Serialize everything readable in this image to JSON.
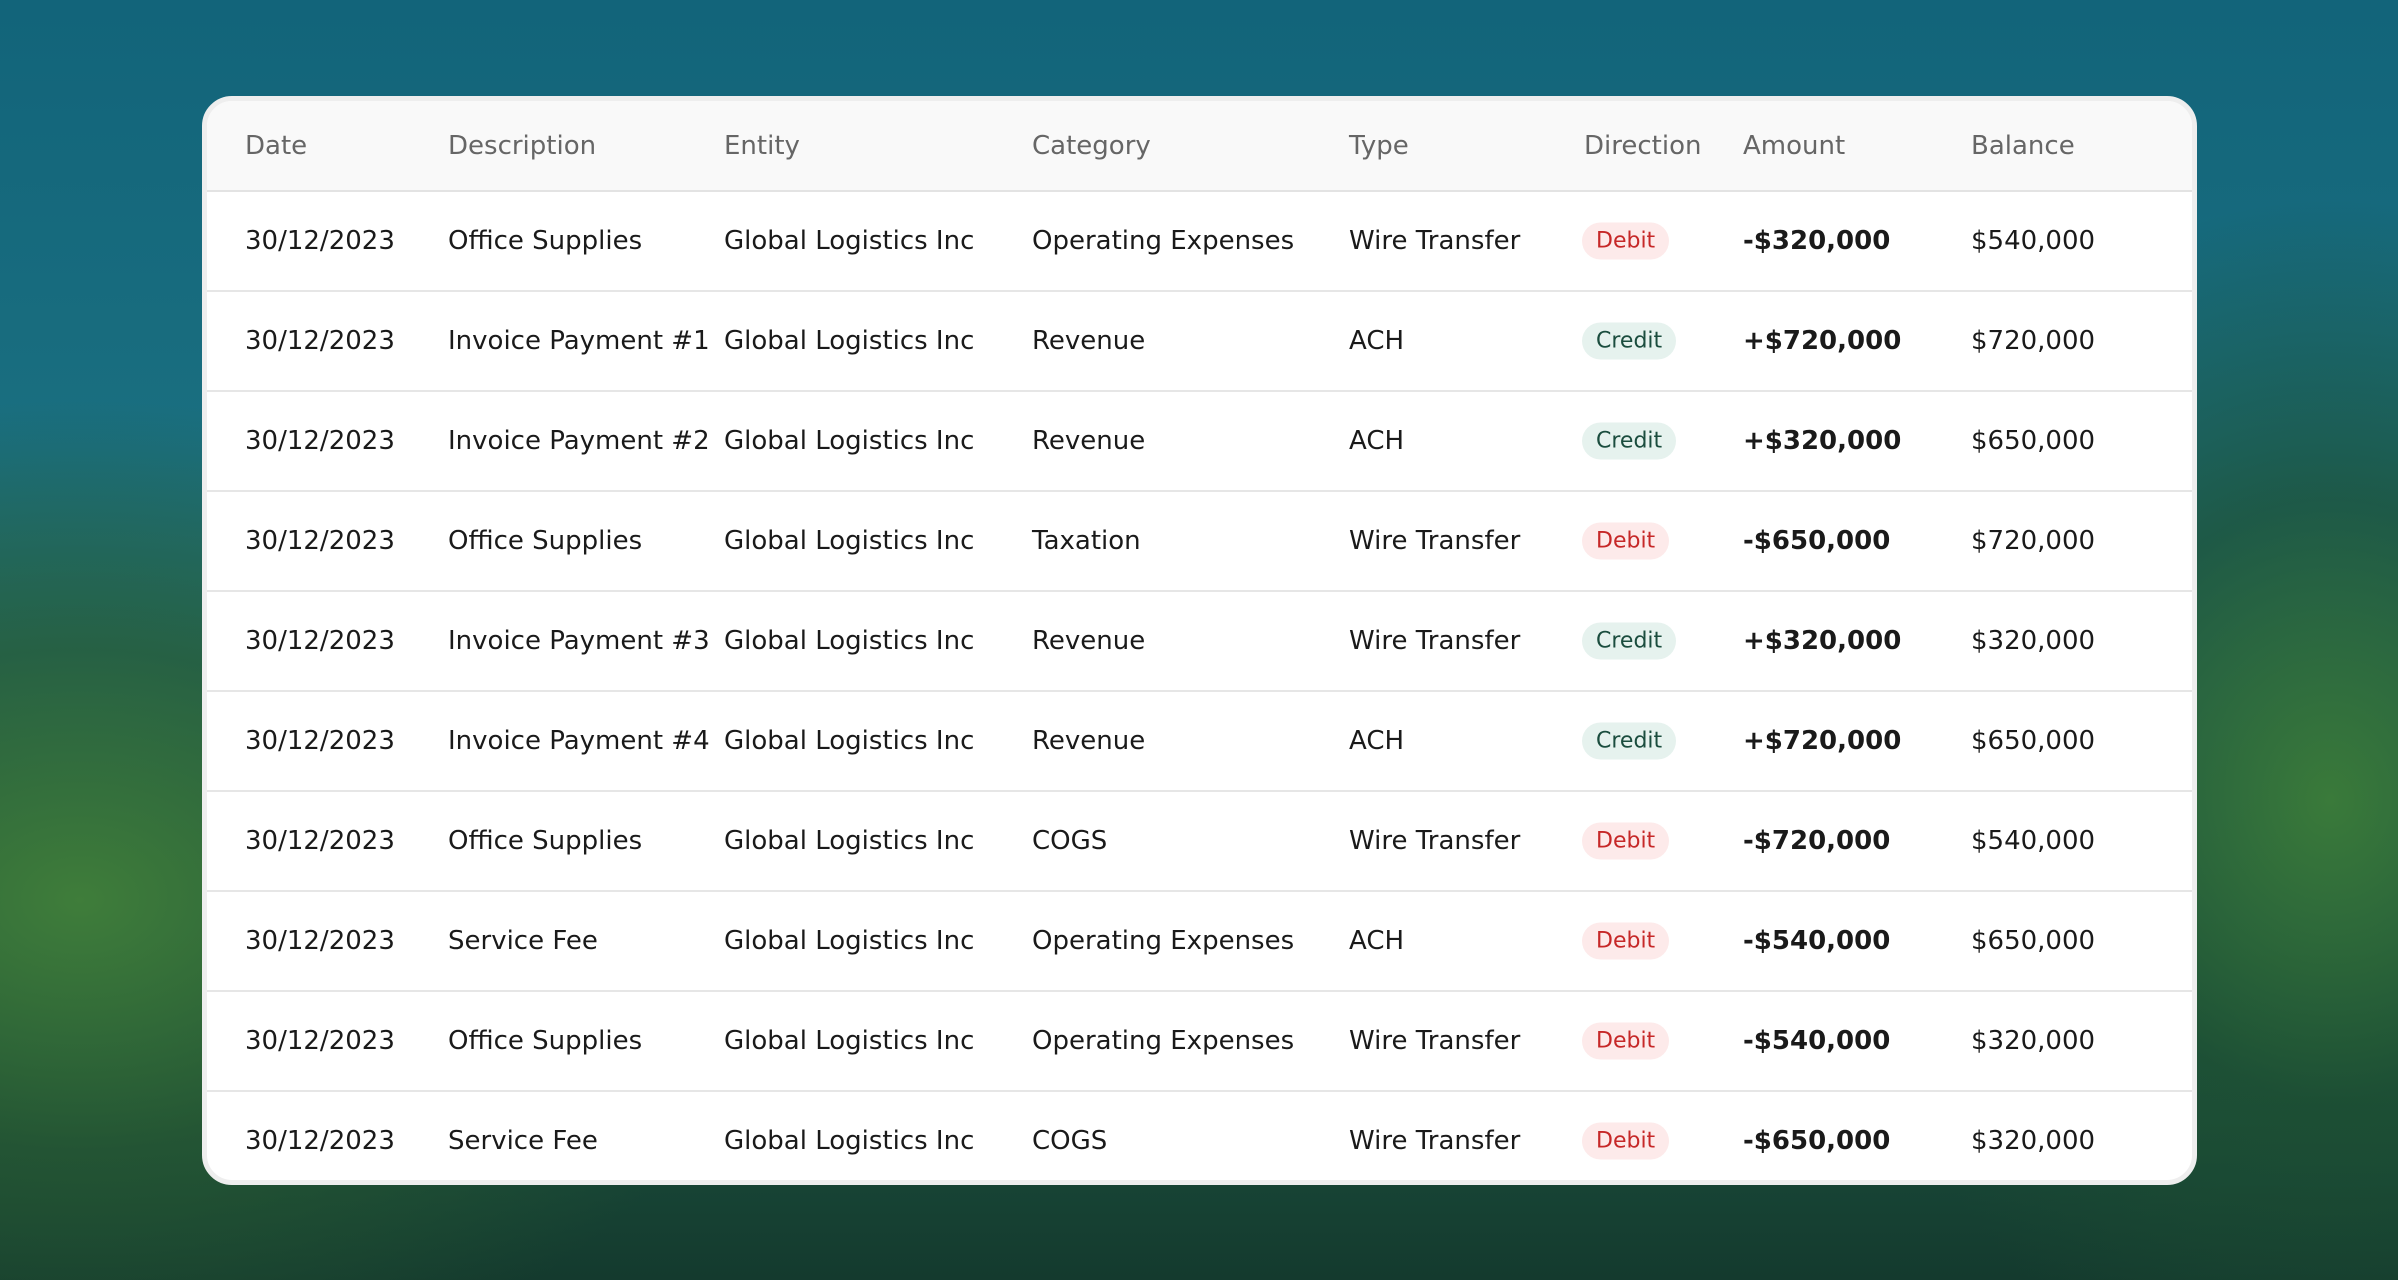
{
  "table": {
    "columns": [
      "Date",
      "Description",
      "Entity",
      "Category",
      "Type",
      "Direction",
      "Amount",
      "Balance"
    ],
    "rows": [
      [
        "30/12/2023",
        "Office Supplies",
        "Global Logistics Inc",
        "Operating Expenses",
        "Wire Transfer",
        "Debit",
        "-$320,000",
        "$540,000"
      ],
      [
        "30/12/2023",
        "Invoice Payment #1",
        "Global Logistics Inc",
        "Revenue",
        "ACH",
        "Credit",
        "+$720,000",
        "$720,000"
      ],
      [
        "30/12/2023",
        "Invoice Payment #2",
        "Global Logistics Inc",
        "Revenue",
        "ACH",
        "Credit",
        "+$320,000",
        "$650,000"
      ],
      [
        "30/12/2023",
        "Office Supplies",
        "Global Logistics Inc",
        "Taxation",
        "Wire Transfer",
        "Debit",
        "-$650,000",
        "$720,000"
      ],
      [
        "30/12/2023",
        "Invoice Payment #3",
        "Global Logistics Inc",
        "Revenue",
        "Wire Transfer",
        "Credit",
        "+$320,000",
        "$320,000"
      ],
      [
        "30/12/2023",
        "Invoice Payment #4",
        "Global Logistics Inc",
        "Revenue",
        "ACH",
        "Credit",
        "+$720,000",
        "$650,000"
      ],
      [
        "30/12/2023",
        "Office Supplies",
        "Global Logistics Inc",
        "COGS",
        "Wire Transfer",
        "Debit",
        "-$720,000",
        "$540,000"
      ],
      [
        "30/12/2023",
        "Service Fee",
        "Global Logistics Inc",
        "Operating Expenses",
        "ACH",
        "Debit",
        "-$540,000",
        "$650,000"
      ],
      [
        "30/12/2023",
        "Office Supplies",
        "Global Logistics Inc",
        "Operating Expenses",
        "Wire Transfer",
        "Debit",
        "-$540,000",
        "$320,000"
      ],
      [
        "30/12/2023",
        "Service Fee",
        "Global Logistics Inc",
        "COGS",
        "Wire Transfer",
        "Debit",
        "-$650,000",
        "$320,000"
      ]
    ],
    "direction_styles": {
      "Debit": {
        "color": "#c62828",
        "background": "#fdeaea"
      },
      "Credit": {
        "color": "#1b4d3e",
        "background": "#e6f2ee"
      }
    }
  }
}
